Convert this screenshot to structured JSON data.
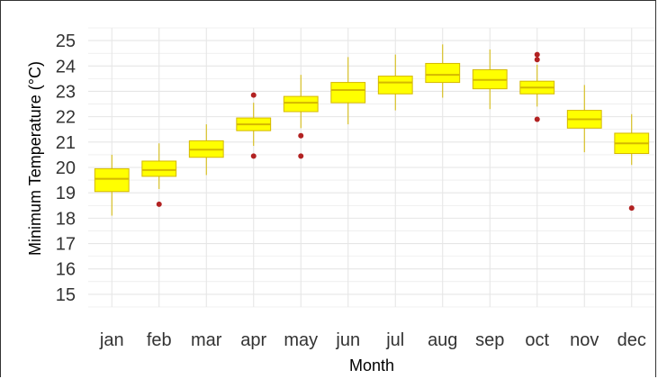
{
  "chart_data": {
    "type": "box",
    "xlabel": "Month",
    "ylabel": "Minimum Temperature (°C)",
    "ylim": [
      14.5,
      25.5
    ],
    "yticks": [
      15,
      16,
      17,
      18,
      19,
      20,
      21,
      22,
      23,
      24,
      25
    ],
    "categories": [
      "jan",
      "feb",
      "mar",
      "apr",
      "may",
      "jun",
      "jul",
      "aug",
      "sep",
      "oct",
      "nov",
      "dec"
    ],
    "grid": true,
    "legend": "none",
    "colors": {
      "box_fill": "#ffff00",
      "box_stroke": "#d4b800",
      "outlier": "#b22222",
      "grid": "#e6e6e6"
    },
    "boxes": [
      {
        "month": "jan",
        "min": 18.1,
        "q1": 19.05,
        "median": 19.55,
        "q3": 19.95,
        "max": 20.5,
        "outliers": []
      },
      {
        "month": "feb",
        "min": 19.15,
        "q1": 19.65,
        "median": 19.9,
        "q3": 20.25,
        "max": 20.95,
        "outliers": [
          18.55
        ]
      },
      {
        "month": "mar",
        "min": 19.7,
        "q1": 20.4,
        "median": 20.7,
        "q3": 21.05,
        "max": 21.7,
        "outliers": []
      },
      {
        "month": "apr",
        "min": 20.85,
        "q1": 21.45,
        "median": 21.7,
        "q3": 21.95,
        "max": 22.55,
        "outliers": [
          22.85,
          20.45
        ]
      },
      {
        "month": "may",
        "min": 21.55,
        "q1": 22.2,
        "median": 22.55,
        "q3": 22.8,
        "max": 23.65,
        "outliers": [
          21.25,
          20.45
        ]
      },
      {
        "month": "jun",
        "min": 21.7,
        "q1": 22.55,
        "median": 23.05,
        "q3": 23.35,
        "max": 24.35,
        "outliers": []
      },
      {
        "month": "jul",
        "min": 22.25,
        "q1": 22.9,
        "median": 23.35,
        "q3": 23.6,
        "max": 24.45,
        "outliers": []
      },
      {
        "month": "aug",
        "min": 22.75,
        "q1": 23.35,
        "median": 23.65,
        "q3": 24.1,
        "max": 24.85,
        "outliers": []
      },
      {
        "month": "sep",
        "min": 22.3,
        "q1": 23.1,
        "median": 23.45,
        "q3": 23.85,
        "max": 24.65,
        "outliers": []
      },
      {
        "month": "oct",
        "min": 22.4,
        "q1": 22.9,
        "median": 23.15,
        "q3": 23.4,
        "max": 24.05,
        "outliers": [
          24.45,
          24.25,
          21.9
        ]
      },
      {
        "month": "nov",
        "min": 20.6,
        "q1": 21.55,
        "median": 21.9,
        "q3": 22.25,
        "max": 23.25,
        "outliers": []
      },
      {
        "month": "dec",
        "min": 20.1,
        "q1": 20.55,
        "median": 20.95,
        "q3": 21.35,
        "max": 22.1,
        "outliers": [
          18.4
        ]
      }
    ]
  }
}
